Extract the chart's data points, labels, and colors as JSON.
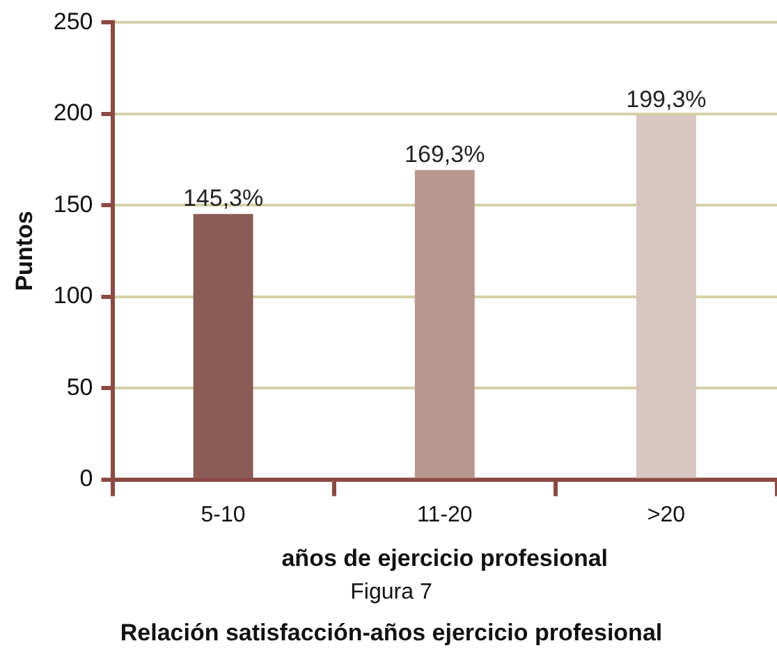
{
  "chart_data": {
    "type": "bar",
    "title": "Relación satisfacción-años ejercicio profesional",
    "subtitle": "Figura 7",
    "xlabel": "años de ejercicio profesional",
    "ylabel": "Puntos",
    "categories": [
      "5-10",
      "11-20",
      ">20"
    ],
    "values": [
      145.3,
      169.3,
      199.3
    ],
    "colors": [
      "#8b5b56",
      "#b8978f",
      "#d9c5c1"
    ],
    "value_labels": [
      "145,3%",
      "169,3%",
      "199,3%"
    ],
    "ylim": [
      0,
      250
    ],
    "yticks": [
      0,
      50,
      100,
      150,
      200,
      250
    ],
    "grid": "y",
    "legend": false
  }
}
